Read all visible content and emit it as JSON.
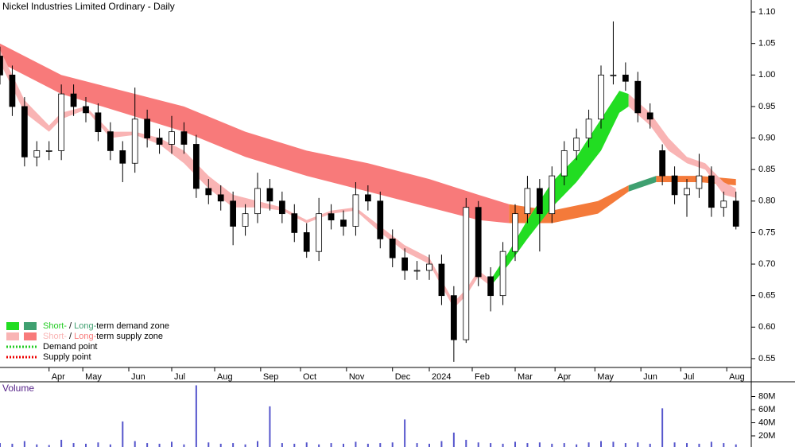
{
  "chart_data": {
    "type": "candlestick",
    "title": "Nickel Industries Limited Ordinary - Daily",
    "xlim": [
      0,
      245
    ],
    "ylim": [
      0.536,
      1.119
    ],
    "yticks": [
      0.55,
      {
        "value": 0.6,
        "label": "0.60"
      },
      0.65,
      {
        "value": 0.7,
        "label": "0.70"
      },
      0.75,
      {
        "value": 0.8,
        "label": "0.80"
      },
      0.85,
      {
        "value": 0.9,
        "label": "0.90"
      },
      0.95,
      {
        "value": 1.0,
        "label": "1.00"
      },
      1.05,
      {
        "value": 1.1,
        "label": "1.10"
      }
    ],
    "xticks": [
      {
        "value": 16,
        "label": "Apr"
      },
      {
        "value": 27,
        "label": "May"
      },
      {
        "value": 42,
        "label": "Jun"
      },
      {
        "value": 56,
        "label": "Jul"
      },
      {
        "value": 70,
        "label": "Aug"
      },
      {
        "value": 85,
        "label": "Sep"
      },
      {
        "value": 98,
        "label": "Oct"
      },
      {
        "value": 113,
        "label": "Nov"
      },
      {
        "value": 128,
        "label": "Dec"
      },
      {
        "value": 140,
        "label": "2024"
      },
      {
        "value": 154,
        "label": "Feb"
      },
      {
        "value": 168,
        "label": "Mar"
      },
      {
        "value": 181,
        "label": "Apr"
      },
      {
        "value": 194,
        "label": "May"
      },
      {
        "value": 209,
        "label": "Jun"
      },
      {
        "value": 222,
        "label": "Jul"
      },
      {
        "value": 237,
        "label": "Aug"
      }
    ],
    "up_color": "#ffffff",
    "down_color": "#000000",
    "x": [
      0,
      4,
      8,
      12,
      16,
      20,
      24,
      28,
      32,
      36,
      40,
      44,
      48,
      52,
      56,
      60,
      64,
      68,
      72,
      76,
      80,
      84,
      88,
      92,
      96,
      100,
      104,
      108,
      112,
      116,
      120,
      124,
      128,
      132,
      136,
      140,
      144,
      148,
      152,
      156,
      160,
      164,
      168,
      172,
      176,
      180,
      184,
      188,
      192,
      196,
      200,
      204,
      208,
      212,
      216,
      220,
      224,
      228,
      232,
      236,
      240
    ],
    "open": [
      1.03,
      1.0,
      0.95,
      0.87,
      0.88,
      0.88,
      0.97,
      0.95,
      0.94,
      0.91,
      0.88,
      0.86,
      0.93,
      0.9,
      0.89,
      0.91,
      0.89,
      0.82,
      0.81,
      0.8,
      0.76,
      0.78,
      0.82,
      0.8,
      0.78,
      0.75,
      0.72,
      0.78,
      0.77,
      0.76,
      0.81,
      0.8,
      0.74,
      0.71,
      0.69,
      0.69,
      0.7,
      0.65,
      0.58,
      0.79,
      0.68,
      0.65,
      0.72,
      0.78,
      0.82,
      0.78,
      0.84,
      0.88,
      0.9,
      0.93,
      1.0,
      1.0,
      0.99,
      0.94,
      0.88,
      0.84,
      0.81,
      0.82,
      0.84,
      0.79,
      0.8
    ],
    "high": [
      1.045,
      1.015,
      0.965,
      0.895,
      0.895,
      0.985,
      0.985,
      0.965,
      0.955,
      0.925,
      0.895,
      0.98,
      0.945,
      0.915,
      0.935,
      0.925,
      0.905,
      0.835,
      0.825,
      0.815,
      0.795,
      0.845,
      0.835,
      0.815,
      0.795,
      0.765,
      0.805,
      0.795,
      0.785,
      0.83,
      0.825,
      0.815,
      0.755,
      0.725,
      0.705,
      0.715,
      0.715,
      0.665,
      0.805,
      0.8,
      0.695,
      0.735,
      0.795,
      0.84,
      0.835,
      0.855,
      0.895,
      0.915,
      0.945,
      1.015,
      1.085,
      1.02,
      1.005,
      0.955,
      0.89,
      0.855,
      0.835,
      0.875,
      0.855,
      0.815,
      0.815
    ],
    "low": [
      0.985,
      0.935,
      0.855,
      0.855,
      0.865,
      0.865,
      0.935,
      0.925,
      0.895,
      0.865,
      0.83,
      0.845,
      0.885,
      0.875,
      0.875,
      0.875,
      0.805,
      0.795,
      0.785,
      0.73,
      0.745,
      0.765,
      0.785,
      0.765,
      0.735,
      0.71,
      0.705,
      0.755,
      0.745,
      0.745,
      0.785,
      0.725,
      0.695,
      0.675,
      0.675,
      0.675,
      0.635,
      0.545,
      0.575,
      0.665,
      0.625,
      0.635,
      0.705,
      0.765,
      0.72,
      0.765,
      0.825,
      0.865,
      0.885,
      0.915,
      0.985,
      0.975,
      0.925,
      0.915,
      0.825,
      0.795,
      0.775,
      0.805,
      0.775,
      0.775,
      0.755
    ],
    "close": [
      1.0,
      0.95,
      0.87,
      0.88,
      0.88,
      0.97,
      0.95,
      0.94,
      0.91,
      0.88,
      0.86,
      0.93,
      0.9,
      0.89,
      0.91,
      0.89,
      0.82,
      0.81,
      0.8,
      0.76,
      0.78,
      0.82,
      0.8,
      0.78,
      0.75,
      0.72,
      0.78,
      0.77,
      0.76,
      0.81,
      0.8,
      0.74,
      0.71,
      0.69,
      0.69,
      0.7,
      0.65,
      0.58,
      0.79,
      0.68,
      0.65,
      0.72,
      0.78,
      0.82,
      0.78,
      0.84,
      0.88,
      0.9,
      0.93,
      1.0,
      1.0,
      0.99,
      0.94,
      0.93,
      0.84,
      0.81,
      0.82,
      0.84,
      0.79,
      0.8,
      0.76
    ],
    "zones": [
      {
        "color": "#f87a7a",
        "x": [
          0,
          20,
          40,
          60,
          80,
          100,
          120,
          140,
          156,
          166
        ],
        "upper": [
          1.05,
          1.0,
          0.975,
          0.95,
          0.91,
          0.88,
          0.86,
          0.835,
          0.81,
          0.795
        ],
        "lower": [
          1.02,
          0.97,
          0.94,
          0.91,
          0.87,
          0.84,
          0.815,
          0.79,
          0.77,
          0.765
        ]
      },
      {
        "color": "#f47a3a",
        "x": [
          166,
          180,
          195,
          205
        ],
        "upper": [
          0.795,
          0.785,
          0.8,
          0.825
        ],
        "lower": [
          0.765,
          0.765,
          0.78,
          0.815
        ]
      },
      {
        "color": "#3fa070",
        "x": [
          205,
          214
        ],
        "upper": [
          0.825,
          0.84
        ],
        "lower": [
          0.815,
          0.83
        ]
      },
      {
        "color": "#f47a3a",
        "x": [
          214,
          228,
          240
        ],
        "upper": [
          0.84,
          0.84,
          0.835
        ],
        "lower": [
          0.83,
          0.83,
          0.825
        ]
      },
      {
        "color": "#f9b4b4",
        "x": [
          0,
          8,
          16,
          20,
          28,
          36,
          44,
          52,
          60,
          68,
          76,
          84,
          92,
          100,
          108,
          116,
          124,
          132,
          140,
          148,
          152,
          156,
          160
        ],
        "upper": [
          1.04,
          0.96,
          0.92,
          0.94,
          0.95,
          0.91,
          0.91,
          0.9,
          0.88,
          0.84,
          0.81,
          0.8,
          0.79,
          0.77,
          0.785,
          0.79,
          0.76,
          0.73,
          0.71,
          0.64,
          0.66,
          0.69,
          0.675
        ],
        "lower": [
          1.02,
          0.94,
          0.91,
          0.93,
          0.945,
          0.9,
          0.905,
          0.89,
          0.86,
          0.82,
          0.79,
          0.79,
          0.785,
          0.765,
          0.78,
          0.785,
          0.75,
          0.72,
          0.7,
          0.63,
          0.65,
          0.68,
          0.665
        ]
      },
      {
        "color": "#22dd22",
        "x": [
          160,
          166,
          172,
          180,
          188,
          196,
          202,
          205
        ],
        "upper": [
          0.675,
          0.72,
          0.77,
          0.83,
          0.87,
          0.93,
          0.975,
          0.97
        ],
        "lower": [
          0.665,
          0.7,
          0.74,
          0.79,
          0.83,
          0.88,
          0.94,
          0.95
        ]
      },
      {
        "color": "#f9b4b4",
        "x": [
          205,
          212,
          218,
          224,
          230,
          236,
          240
        ],
        "upper": [
          0.97,
          0.94,
          0.9,
          0.87,
          0.86,
          0.83,
          0.82
        ],
        "lower": [
          0.95,
          0.92,
          0.88,
          0.86,
          0.85,
          0.81,
          0.805
        ]
      }
    ],
    "legend": [
      {
        "swatches": [
          "#22dd22",
          "#3fa070"
        ],
        "parts": [
          "Short-",
          " / ",
          "Long-",
          "term demand zone"
        ],
        "part_colors": [
          "#22cc22",
          "#000000",
          "#3fa070",
          "#000000"
        ]
      },
      {
        "swatches": [
          "#f9b4b4",
          "#f87a7a"
        ],
        "parts": [
          "Short-",
          " / ",
          "Long-",
          "term supply zone"
        ],
        "part_colors": [
          "#f9b4b4",
          "#000000",
          "#f87a7a",
          "#000000"
        ]
      },
      {
        "line": "#22cc22",
        "parts": [
          "Demand point"
        ],
        "part_colors": [
          "#000000"
        ]
      },
      {
        "line": "#ee0000",
        "parts": [
          "Supply point"
        ],
        "part_colors": [
          "#000000"
        ]
      }
    ],
    "volume": {
      "title": "Volume",
      "color": "#5555cc",
      "ylim": [
        0,
        100000000
      ],
      "yticks": [
        {
          "value": 20000000,
          "label": "20M"
        },
        {
          "value": 40000000,
          "label": "40M"
        },
        {
          "value": 60000000,
          "label": "60M"
        },
        {
          "value": 80000000,
          "label": "80M"
        }
      ],
      "values": [
        9000000,
        8000000,
        12000000,
        7000000,
        6000000,
        14000000,
        9000000,
        8000000,
        10000000,
        7000000,
        42000000,
        12000000,
        9000000,
        8000000,
        11000000,
        7000000,
        97000000,
        10000000,
        8000000,
        9000000,
        7000000,
        12000000,
        65000000,
        9000000,
        8000000,
        10000000,
        7000000,
        9000000,
        8000000,
        11000000,
        8000000,
        9000000,
        10000000,
        45000000,
        9000000,
        8000000,
        12000000,
        25000000,
        14000000,
        10000000,
        9000000,
        8000000,
        11000000,
        9000000,
        10000000,
        8000000,
        9000000,
        7000000,
        10000000,
        12000000,
        11000000,
        9000000,
        10000000,
        8000000,
        62000000,
        10000000,
        9000000,
        8000000,
        11000000,
        9000000,
        7000000
      ]
    }
  }
}
